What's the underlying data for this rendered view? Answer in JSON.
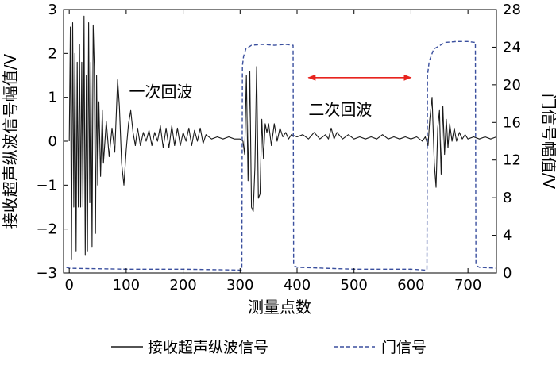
{
  "chart_data": {
    "type": "line",
    "xlabel": "测量点数",
    "ylabel_left": "接收超声纵波信号幅值/V",
    "ylabel_right": "门信号幅值/V",
    "xlim": [
      -10,
      750
    ],
    "ylim_left": [
      -3,
      3
    ],
    "ylim_right": [
      0,
      28
    ],
    "xticks": [
      0,
      100,
      200,
      300,
      400,
      500,
      600,
      700
    ],
    "yticks_left": [
      -3,
      -2,
      -1,
      0,
      1,
      2,
      3
    ],
    "yticks_right": [
      0,
      4,
      8,
      12,
      16,
      20,
      24,
      28
    ],
    "legend_position": "bottom",
    "grid": false,
    "annotations": [
      {
        "text": "一次回波",
        "x": 105,
        "y": 1.0
      },
      {
        "text": "二次回波",
        "x": 420,
        "y": 0.6
      },
      {
        "type": "double-arrow",
        "color": "#e8231e",
        "x_start": 420,
        "x_end": 600,
        "y": 1.45
      }
    ],
    "series": [
      {
        "name": "接收超声纵波信号",
        "axis": "left",
        "color": "#1a1a1a",
        "style": "solid",
        "points": [
          [
            0,
            0
          ],
          [
            2,
            2.6
          ],
          [
            4,
            -2.7
          ],
          [
            6,
            2.7
          ],
          [
            8,
            -1.5
          ],
          [
            10,
            2.0
          ],
          [
            12,
            -2.5
          ],
          [
            14,
            1.8
          ],
          [
            16,
            -1.5
          ],
          [
            18,
            2.2
          ],
          [
            20,
            -1.5
          ],
          [
            22,
            1.8
          ],
          [
            24,
            -1.5
          ],
          [
            26,
            2.85
          ],
          [
            28,
            -2.6
          ],
          [
            30,
            1.5
          ],
          [
            32,
            -2.5
          ],
          [
            34,
            2.7
          ],
          [
            36,
            -1.4
          ],
          [
            38,
            1.8
          ],
          [
            40,
            -2.4
          ],
          [
            42,
            2.65
          ],
          [
            44,
            1.7
          ],
          [
            46,
            -2.1
          ],
          [
            48,
            1.5
          ],
          [
            50,
            -1.0
          ],
          [
            52,
            0.9
          ],
          [
            55,
            -0.8
          ],
          [
            58,
            0.7
          ],
          [
            60,
            -0.5
          ],
          [
            65,
            0.45
          ],
          [
            70,
            -0.35
          ],
          [
            75,
            0.3
          ],
          [
            80,
            -0.25
          ],
          [
            85,
            1.4
          ],
          [
            88,
            0.8
          ],
          [
            92,
            -0.5
          ],
          [
            96,
            -1.0
          ],
          [
            100,
            -0.2
          ],
          [
            104,
            0.4
          ],
          [
            108,
            0.7
          ],
          [
            112,
            0.2
          ],
          [
            116,
            -0.1
          ],
          [
            120,
            0.3
          ],
          [
            125,
            -0.1
          ],
          [
            130,
            0.2
          ],
          [
            135,
            0.0
          ],
          [
            140,
            0.25
          ],
          [
            145,
            -0.1
          ],
          [
            150,
            0.2
          ],
          [
            155,
            0.0
          ],
          [
            160,
            0.35
          ],
          [
            165,
            -0.15
          ],
          [
            170,
            0.3
          ],
          [
            175,
            -0.15
          ],
          [
            180,
            0.35
          ],
          [
            185,
            -0.1
          ],
          [
            190,
            0.3
          ],
          [
            195,
            -0.1
          ],
          [
            200,
            0.2
          ],
          [
            205,
            0.0
          ],
          [
            210,
            0.3
          ],
          [
            215,
            -0.1
          ],
          [
            220,
            0.25
          ],
          [
            225,
            0.0
          ],
          [
            230,
            0.3
          ],
          [
            235,
            -0.05
          ],
          [
            240,
            0.15
          ],
          [
            250,
            0.05
          ],
          [
            260,
            0.1
          ],
          [
            270,
            0.05
          ],
          [
            280,
            0.1
          ],
          [
            290,
            0.05
          ],
          [
            300,
            0.05
          ],
          [
            305,
            0.0
          ],
          [
            308,
            -0.3
          ],
          [
            311,
            1.5
          ],
          [
            314,
            -0.9
          ],
          [
            317,
            1.6
          ],
          [
            320,
            -1.5
          ],
          [
            323,
            -1.6
          ],
          [
            326,
            -0.6
          ],
          [
            329,
            1.7
          ],
          [
            332,
            -1.3
          ],
          [
            335,
            -1.2
          ],
          [
            338,
            0.5
          ],
          [
            341,
            -0.4
          ],
          [
            344,
            0.4
          ],
          [
            347,
            0.2
          ],
          [
            350,
            0.4
          ],
          [
            355,
            -0.1
          ],
          [
            360,
            0.4
          ],
          [
            365,
            0.0
          ],
          [
            370,
            0.3
          ],
          [
            375,
            0.1
          ],
          [
            380,
            0.2
          ],
          [
            385,
            0.05
          ],
          [
            390,
            0.15
          ],
          [
            400,
            0.1
          ],
          [
            410,
            0.15
          ],
          [
            420,
            0.05
          ],
          [
            430,
            0.2
          ],
          [
            440,
            0.05
          ],
          [
            450,
            0.15
          ],
          [
            455,
            0.05
          ],
          [
            460,
            0.3
          ],
          [
            465,
            0.05
          ],
          [
            470,
            0.2
          ],
          [
            480,
            0.05
          ],
          [
            490,
            0.15
          ],
          [
            500,
            0.05
          ],
          [
            510,
            0.1
          ],
          [
            520,
            0.05
          ],
          [
            530,
            0.1
          ],
          [
            540,
            0.05
          ],
          [
            550,
            0.15
          ],
          [
            560,
            0.05
          ],
          [
            570,
            0.1
          ],
          [
            580,
            0.05
          ],
          [
            590,
            0.1
          ],
          [
            600,
            0.05
          ],
          [
            610,
            0.1
          ],
          [
            620,
            0.0
          ],
          [
            625,
            0.1
          ],
          [
            630,
            -0.1
          ],
          [
            633,
            0.5
          ],
          [
            637,
            1.0
          ],
          [
            641,
            -0.5
          ],
          [
            644,
            -1.05
          ],
          [
            647,
            0.3
          ],
          [
            650,
            0.7
          ],
          [
            653,
            -0.75
          ],
          [
            656,
            0.8
          ],
          [
            659,
            -0.3
          ],
          [
            662,
            0.5
          ],
          [
            665,
            -0.15
          ],
          [
            668,
            0.4
          ],
          [
            672,
            0.0
          ],
          [
            676,
            0.3
          ],
          [
            680,
            0.0
          ],
          [
            685,
            0.2
          ],
          [
            690,
            0.05
          ],
          [
            695,
            0.15
          ],
          [
            700,
            0.05
          ],
          [
            710,
            0.1
          ],
          [
            720,
            0.05
          ],
          [
            730,
            0.1
          ],
          [
            740,
            0.05
          ],
          [
            750,
            0.1
          ]
        ]
      },
      {
        "name": "门信号",
        "axis": "right",
        "color": "#3a4f9e",
        "style": "dashed",
        "points": [
          [
            -5,
            0.6
          ],
          [
            0,
            0.5
          ],
          [
            100,
            0.4
          ],
          [
            200,
            0.4
          ],
          [
            300,
            0.3
          ],
          [
            303,
            0.3
          ],
          [
            304,
            22.0
          ],
          [
            306,
            23.0
          ],
          [
            310,
            23.8
          ],
          [
            320,
            24.2
          ],
          [
            340,
            24.3
          ],
          [
            360,
            24.2
          ],
          [
            380,
            24.3
          ],
          [
            392,
            24.2
          ],
          [
            393,
            24.2
          ],
          [
            394,
            0.8
          ],
          [
            400,
            0.6
          ],
          [
            500,
            0.4
          ],
          [
            600,
            0.4
          ],
          [
            625,
            0.3
          ],
          [
            628,
            0.3
          ],
          [
            629,
            21.0
          ],
          [
            632,
            22.5
          ],
          [
            640,
            23.8
          ],
          [
            660,
            24.5
          ],
          [
            680,
            24.6
          ],
          [
            700,
            24.6
          ],
          [
            712,
            24.5
          ],
          [
            713,
            24.5
          ],
          [
            714,
            0.8
          ],
          [
            720,
            0.6
          ],
          [
            750,
            0.5
          ]
        ]
      }
    ]
  }
}
